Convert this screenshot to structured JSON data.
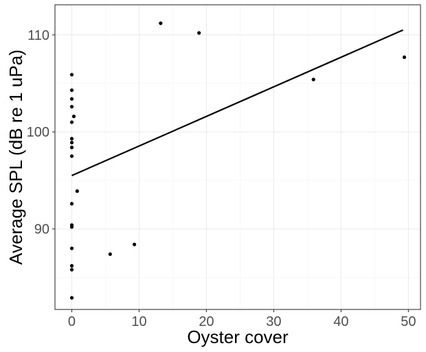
{
  "chart_data": {
    "type": "scatter",
    "xlabel": "Oyster cover",
    "ylabel": "Average SPL (dB re 1 uPa)",
    "xlim": [
      -2.5,
      51.8
    ],
    "ylim": [
      81.7,
      113.1
    ],
    "x_ticks": [
      0,
      10,
      20,
      30,
      40,
      50
    ],
    "y_ticks": [
      90,
      100,
      110
    ],
    "x_tick_labels": [
      "0",
      "10",
      "20",
      "30",
      "40",
      "50"
    ],
    "y_tick_labels": [
      "90",
      "100",
      "110"
    ],
    "grid": true,
    "points": [
      {
        "x": 0,
        "y": 105.9
      },
      {
        "x": 0,
        "y": 104.3
      },
      {
        "x": 0,
        "y": 103.4
      },
      {
        "x": 0,
        "y": 102.6
      },
      {
        "x": 0.3,
        "y": 101.6
      },
      {
        "x": 0,
        "y": 101.0
      },
      {
        "x": 0,
        "y": 99.3
      },
      {
        "x": 0,
        "y": 98.9
      },
      {
        "x": 0,
        "y": 98.4
      },
      {
        "x": 0,
        "y": 97.5
      },
      {
        "x": 0.8,
        "y": 93.9
      },
      {
        "x": 0,
        "y": 92.6
      },
      {
        "x": 0,
        "y": 90.4
      },
      {
        "x": 0,
        "y": 90.2
      },
      {
        "x": 0,
        "y": 88.0
      },
      {
        "x": 0,
        "y": 86.2
      },
      {
        "x": 0,
        "y": 85.8
      },
      {
        "x": 0,
        "y": 82.9
      },
      {
        "x": 5.7,
        "y": 87.4
      },
      {
        "x": 9.3,
        "y": 88.4
      },
      {
        "x": 13.2,
        "y": 111.2
      },
      {
        "x": 18.9,
        "y": 110.2
      },
      {
        "x": 35.9,
        "y": 105.4
      },
      {
        "x": 49.4,
        "y": 107.7
      }
    ],
    "fit_line": {
      "x": [
        0,
        49.2
      ],
      "y": [
        95.5,
        110.5
      ]
    },
    "colors": {
      "points": "#000000",
      "line": "#000000",
      "grid": "#ebebeb",
      "border": "#333333",
      "tick_label": "#4d4d4d"
    }
  }
}
